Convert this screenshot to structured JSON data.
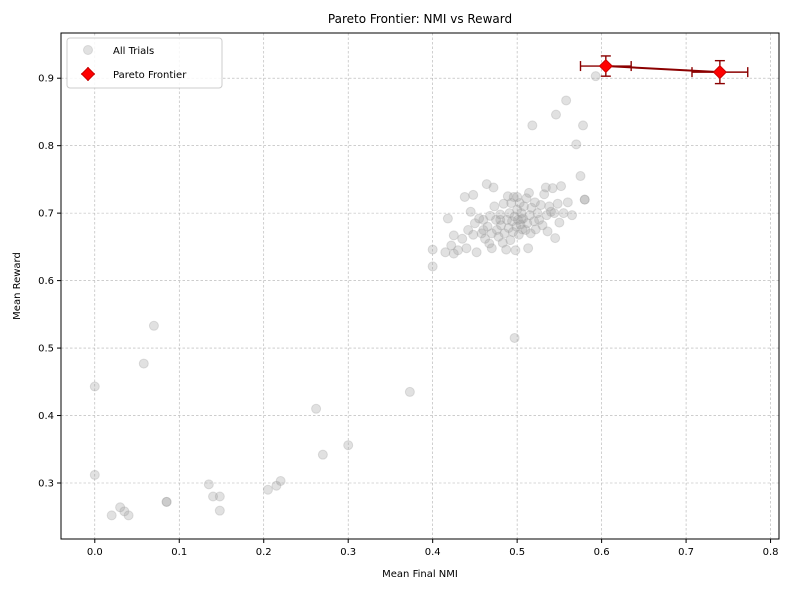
{
  "chart_data": {
    "type": "scatter",
    "title": "Pareto Frontier: NMI vs Reward",
    "xlabel": "Mean Final NMI",
    "ylabel": "Mean Reward",
    "xlim": [
      -0.04,
      0.81
    ],
    "ylim": [
      0.217,
      0.967
    ],
    "xticks": [
      0.0,
      0.1,
      0.2,
      0.3,
      0.4,
      0.5,
      0.6,
      0.7,
      0.8
    ],
    "yticks": [
      0.3,
      0.4,
      0.5,
      0.6,
      0.7,
      0.8,
      0.9
    ],
    "grid": true,
    "legend_position": "top-left",
    "colors": {
      "trials": "#9a9a9a",
      "frontier": "#ff0000",
      "frontier_line": "#8b0000",
      "errorbar": "#8b0000"
    },
    "series": [
      {
        "name": "All Trials",
        "kind": "scatter",
        "points": [
          [
            0.0,
            0.443
          ],
          [
            0.0,
            0.312
          ],
          [
            0.02,
            0.252
          ],
          [
            0.03,
            0.264
          ],
          [
            0.035,
            0.258
          ],
          [
            0.04,
            0.252
          ],
          [
            0.058,
            0.477
          ],
          [
            0.07,
            0.533
          ],
          [
            0.085,
            0.272
          ],
          [
            0.085,
            0.272
          ],
          [
            0.135,
            0.298
          ],
          [
            0.14,
            0.28
          ],
          [
            0.148,
            0.28
          ],
          [
            0.148,
            0.259
          ],
          [
            0.205,
            0.29
          ],
          [
            0.215,
            0.296
          ],
          [
            0.22,
            0.303
          ],
          [
            0.262,
            0.41
          ],
          [
            0.27,
            0.342
          ],
          [
            0.3,
            0.356
          ],
          [
            0.373,
            0.435
          ],
          [
            0.4,
            0.646
          ],
          [
            0.4,
            0.621
          ],
          [
            0.415,
            0.642
          ],
          [
            0.418,
            0.692
          ],
          [
            0.422,
            0.652
          ],
          [
            0.425,
            0.64
          ],
          [
            0.425,
            0.667
          ],
          [
            0.43,
            0.645
          ],
          [
            0.435,
            0.662
          ],
          [
            0.438,
            0.724
          ],
          [
            0.44,
            0.648
          ],
          [
            0.442,
            0.675
          ],
          [
            0.445,
            0.702
          ],
          [
            0.448,
            0.727
          ],
          [
            0.448,
            0.668
          ],
          [
            0.45,
            0.685
          ],
          [
            0.452,
            0.642
          ],
          [
            0.455,
            0.692
          ],
          [
            0.458,
            0.67
          ],
          [
            0.46,
            0.69
          ],
          [
            0.462,
            0.662
          ],
          [
            0.464,
            0.743
          ],
          [
            0.465,
            0.68
          ],
          [
            0.467,
            0.655
          ],
          [
            0.468,
            0.696
          ],
          [
            0.47,
            0.648
          ],
          [
            0.472,
            0.738
          ],
          [
            0.473,
            0.71
          ],
          [
            0.475,
            0.69
          ],
          [
            0.476,
            0.675
          ],
          [
            0.478,
            0.665
          ],
          [
            0.48,
            0.698
          ],
          [
            0.481,
            0.682
          ],
          [
            0.483,
            0.656
          ],
          [
            0.484,
            0.714
          ],
          [
            0.485,
            0.67
          ],
          [
            0.487,
            0.646
          ],
          [
            0.488,
            0.69
          ],
          [
            0.489,
            0.725
          ],
          [
            0.49,
            0.678
          ],
          [
            0.491,
            0.7
          ],
          [
            0.492,
            0.66
          ],
          [
            0.493,
            0.715
          ],
          [
            0.494,
            0.688
          ],
          [
            0.495,
            0.672
          ],
          [
            0.496,
            0.724
          ],
          [
            0.497,
            0.695
          ],
          [
            0.498,
            0.645
          ],
          [
            0.499,
            0.68
          ],
          [
            0.5,
            0.705
          ],
          [
            0.5,
            0.724
          ],
          [
            0.501,
            0.69
          ],
          [
            0.502,
            0.668
          ],
          [
            0.503,
            0.715
          ],
          [
            0.504,
            0.683
          ],
          [
            0.505,
            0.7
          ],
          [
            0.506,
            0.676
          ],
          [
            0.507,
            0.692
          ],
          [
            0.508,
            0.71
          ],
          [
            0.51,
            0.675
          ],
          [
            0.511,
            0.722
          ],
          [
            0.512,
            0.685
          ],
          [
            0.513,
            0.648
          ],
          [
            0.514,
            0.73
          ],
          [
            0.515,
            0.697
          ],
          [
            0.516,
            0.67
          ],
          [
            0.517,
            0.708
          ],
          [
            0.518,
            0.83
          ],
          [
            0.52,
            0.688
          ],
          [
            0.521,
            0.716
          ],
          [
            0.522,
            0.676
          ],
          [
            0.524,
            0.7
          ],
          [
            0.526,
            0.69
          ],
          [
            0.528,
            0.712
          ],
          [
            0.53,
            0.682
          ],
          [
            0.532,
            0.728
          ],
          [
            0.534,
            0.738
          ],
          [
            0.535,
            0.697
          ],
          [
            0.536,
            0.673
          ],
          [
            0.538,
            0.71
          ],
          [
            0.54,
            0.702
          ],
          [
            0.542,
            0.737
          ],
          [
            0.544,
            0.7
          ],
          [
            0.545,
            0.663
          ],
          [
            0.546,
            0.846
          ],
          [
            0.548,
            0.714
          ],
          [
            0.55,
            0.686
          ],
          [
            0.552,
            0.74
          ],
          [
            0.555,
            0.7
          ],
          [
            0.558,
            0.867
          ],
          [
            0.56,
            0.716
          ],
          [
            0.565,
            0.697
          ],
          [
            0.57,
            0.802
          ],
          [
            0.575,
            0.755
          ],
          [
            0.578,
            0.83
          ],
          [
            0.58,
            0.72
          ],
          [
            0.58,
            0.72
          ],
          [
            0.593,
            0.903
          ],
          [
            0.497,
            0.515
          ],
          [
            0.505,
            0.691
          ],
          [
            0.48,
            0.69
          ],
          [
            0.46,
            0.675
          ],
          [
            0.47,
            0.67
          ]
        ]
      },
      {
        "name": "Pareto Frontier",
        "kind": "errorbar",
        "points": [
          {
            "x": 0.605,
            "y": 0.918,
            "xerr": 0.03,
            "yerr": 0.015
          },
          {
            "x": 0.74,
            "y": 0.909,
            "xerr": 0.033,
            "yerr": 0.017
          }
        ]
      }
    ]
  }
}
